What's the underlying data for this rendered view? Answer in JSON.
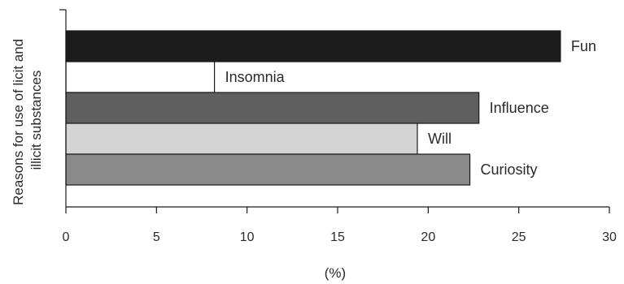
{
  "chart_data": {
    "type": "bar",
    "orientation": "horizontal",
    "categories": [
      "Fun",
      "Insomnia",
      "Influence",
      "Will",
      "Curiosity"
    ],
    "values": [
      27.3,
      8.2,
      22.8,
      19.4,
      22.3
    ],
    "colors": [
      "#1c1c1c",
      "#ffffff",
      "#5f5f5f",
      "#d4d4d4",
      "#8a8a8a"
    ],
    "xlabel": "(%)",
    "ylabel_lines": [
      "Reasons for use of licit and",
      "illicit substances"
    ],
    "xlim": [
      0,
      30
    ],
    "xticks": [
      0,
      5,
      10,
      15,
      20,
      25,
      30
    ],
    "grid": false,
    "legend": "none"
  }
}
